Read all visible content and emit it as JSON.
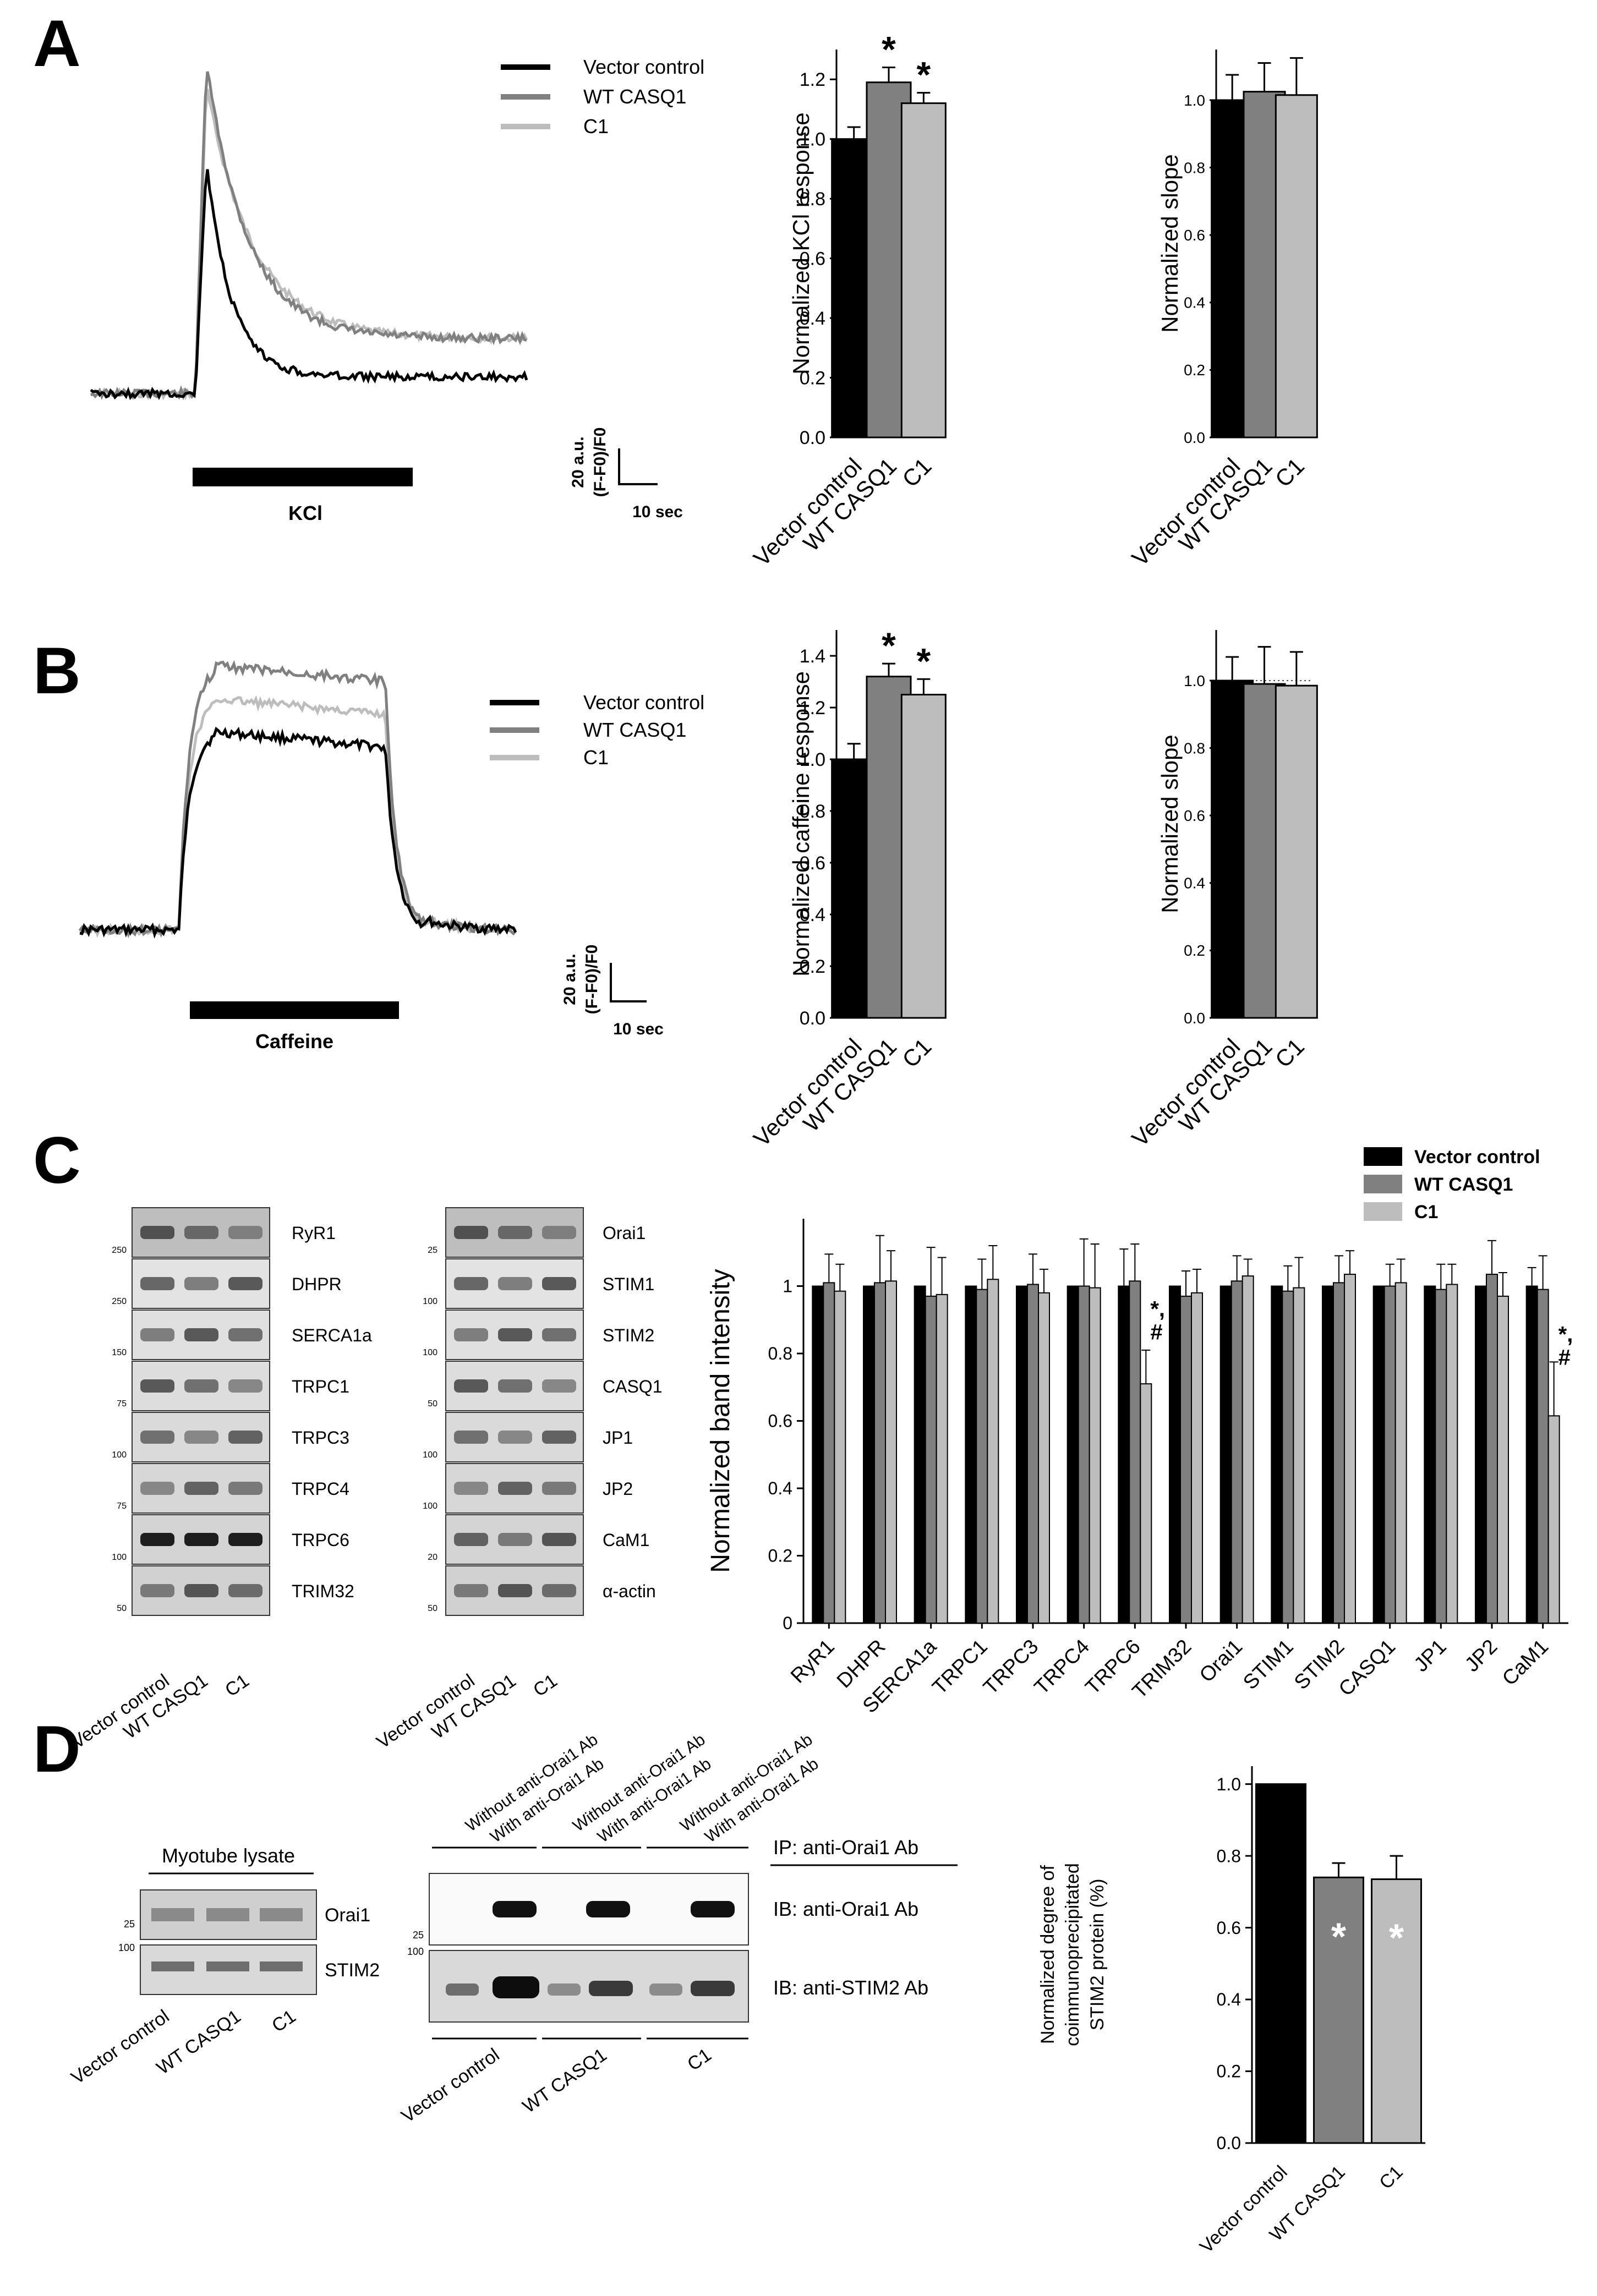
{
  "panels": {
    "A": "A",
    "B": "B",
    "C": "C",
    "D": "D"
  },
  "groups": [
    "Vector control",
    "WT CASQ1",
    "C1"
  ],
  "colors": {
    "vector": "#000000",
    "wt": "#808080",
    "c1": "#bdbdbd"
  },
  "traceA": {
    "stim_label": "KCl",
    "scale_y": "20 a.u.",
    "scale_y2": "(F-F0)/F0",
    "scale_x": "10 sec"
  },
  "traceB": {
    "stim_label": "Caffeine",
    "scale_y": "20 a.u.",
    "scale_y2": "(F-F0)/F0",
    "scale_x": "10 sec"
  },
  "chart_data": [
    {
      "id": "A_response",
      "type": "bar",
      "categories": [
        "Vector control",
        "WT CASQ1",
        "C1"
      ],
      "values": [
        1.0,
        1.19,
        1.12
      ],
      "errors": [
        0.04,
        0.05,
        0.035
      ],
      "significance": [
        "",
        "*",
        "*"
      ],
      "ylabel": "Normalized KCl response",
      "ylim": [
        0,
        1.3
      ],
      "ticks": [
        "0.0",
        "0.2",
        "0.4",
        "0.6",
        "0.8",
        "1.0",
        "1.2"
      ]
    },
    {
      "id": "A_slope",
      "type": "bar",
      "categories": [
        "Vector control",
        "WT CASQ1",
        "C1"
      ],
      "values": [
        1.0,
        1.025,
        1.015
      ],
      "errors": [
        0.075,
        0.085,
        0.11
      ],
      "ylabel": "Normalized slope",
      "ylim": [
        0,
        1.15
      ],
      "ticks": [
        "0.0",
        "0.2",
        "0.4",
        "0.6",
        "0.8",
        "1.0"
      ]
    },
    {
      "id": "B_response",
      "type": "bar",
      "categories": [
        "Vector control",
        "WT CASQ1",
        "C1"
      ],
      "values": [
        1.0,
        1.32,
        1.25
      ],
      "errors": [
        0.06,
        0.05,
        0.06
      ],
      "significance": [
        "",
        "*",
        "*"
      ],
      "ylabel": "Normalized caffeine response",
      "ylim": [
        0,
        1.5
      ],
      "ticks": [
        "0.0",
        "0.2",
        "0.4",
        "0.6",
        "0.8",
        "1.0",
        "1.2",
        "1.4"
      ]
    },
    {
      "id": "B_slope",
      "type": "bar",
      "categories": [
        "Vector control",
        "WT CASQ1",
        "C1"
      ],
      "values": [
        1.0,
        0.99,
        0.985
      ],
      "errors": [
        0.07,
        0.11,
        0.1
      ],
      "ylabel": "Normalized slope",
      "ylim": [
        0,
        1.15
      ],
      "ticks": [
        "0.0",
        "0.2",
        "0.4",
        "0.6",
        "0.8",
        "1.0"
      ]
    },
    {
      "id": "C_band",
      "type": "bar",
      "categories": [
        "RyR1",
        "DHPR",
        "SERCA1a",
        "TRPC1",
        "TRPC3",
        "TRPC4",
        "TRPC6",
        "TRIM32",
        "Orai1",
        "STIM1",
        "STIM2",
        "CASQ1",
        "JP1",
        "JP2",
        "CaM1"
      ],
      "series": [
        {
          "name": "Vector control",
          "values": [
            1,
            1,
            1,
            1,
            1,
            1,
            1,
            1,
            1,
            1,
            1,
            1,
            1,
            1,
            1
          ],
          "errors": [
            0,
            0,
            0,
            0,
            0,
            0,
            0,
            0,
            0,
            0,
            0,
            0,
            0,
            0,
            0
          ]
        },
        {
          "name": "WT CASQ1",
          "values": [
            1.01,
            1.01,
            0.97,
            0.99,
            1.005,
            1.0,
            1.015,
            0.97,
            1.015,
            0.985,
            1.01,
            1.0,
            0.99,
            1.035,
            0.99
          ]
        },
        {
          "name": "C1",
          "values": [
            0.985,
            1.015,
            0.975,
            1.02,
            0.98,
            0.995,
            0.71,
            0.98,
            1.03,
            0.995,
            1.035,
            1.01,
            1.005,
            0.97,
            0.615
          ]
        }
      ],
      "annotations": [
        {
          "category": "TRPC6",
          "text": "*, #"
        },
        {
          "category": "CaM1",
          "text": "*, #"
        }
      ],
      "ylabel": "Normalized band intensity",
      "ylim": [
        0,
        1.2
      ],
      "ticks": [
        "0",
        "0.2",
        "0.4",
        "0.6",
        "0.8",
        "1"
      ]
    },
    {
      "id": "D_coip",
      "type": "bar",
      "categories": [
        "Vector control",
        "WT CASQ1",
        "C1"
      ],
      "values": [
        1.0,
        0.74,
        0.735
      ],
      "errors": [
        0,
        0.04,
        0.065
      ],
      "significance": [
        "",
        "*",
        "*"
      ],
      "ylabel_lines": [
        "Normalized degree of",
        "coimmunoprecipitated",
        "STIM2 protein (%)"
      ],
      "ylim": [
        0,
        1.05
      ],
      "ticks": [
        "0.0",
        "0.2",
        "0.4",
        "0.6",
        "0.8",
        "1.0"
      ]
    }
  ],
  "blots": {
    "left_labels": [
      "RyR1",
      "DHPR",
      "SERCA1a",
      "TRPC1",
      "TRPC3",
      "TRPC4",
      "TRPC6",
      "TRIM32"
    ],
    "left_mw": [
      "250",
      "250",
      "150",
      "75",
      "100",
      "75",
      "100",
      "50"
    ],
    "right_labels": [
      "Orai1",
      "STIM1",
      "STIM2",
      "CASQ1",
      "JP1",
      "JP2",
      "CaM1",
      "α-actin"
    ],
    "right_mw": [
      "25",
      "100",
      "100",
      "50",
      "100",
      "100",
      "20",
      "50"
    ]
  },
  "panelD": {
    "lysate_title": "Myotube lysate",
    "lysate_labels": [
      "Orai1",
      "STIM2"
    ],
    "lysate_mw": [
      "25",
      "100"
    ],
    "ip_headers": [
      "Without anti-Orai1 Ab",
      "With anti-Orai1 Ab"
    ],
    "ip_label": "IP: anti-Orai1 Ab",
    "ib_labels": [
      "IB: anti-Orai1 Ab",
      "IB: anti-STIM2 Ab"
    ],
    "ip_mw": [
      "25",
      "100"
    ]
  }
}
